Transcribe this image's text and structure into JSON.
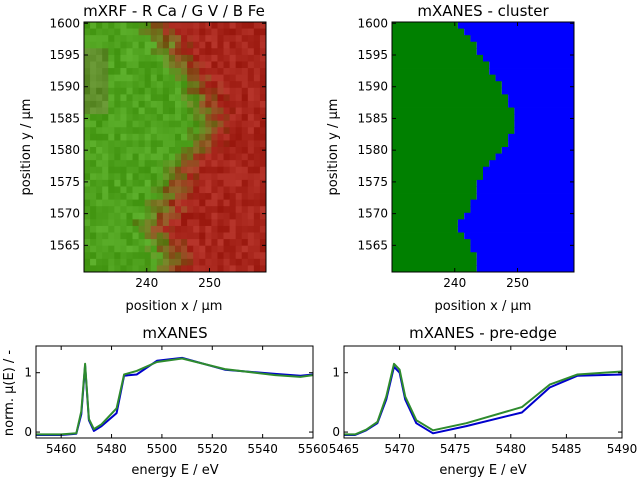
{
  "chart_data": [
    {
      "type": "heatmap",
      "title": "mXRF - R Ca / G V / B Fe",
      "xlabel": "position x / µm",
      "ylabel": "position y / µm",
      "xlim": [
        230,
        259
      ],
      "ylim": [
        1560.8,
        1600.2
      ],
      "xticks": [
        240,
        250
      ],
      "yticks": [
        1565,
        1570,
        1575,
        1580,
        1585,
        1590,
        1595,
        1600
      ],
      "nx": 30,
      "ny": 38,
      "colors": {
        "ca_red": "#a8261c",
        "v_green": "#4fa21e",
        "fe_blue": "#3c3c3c"
      }
    },
    {
      "type": "heatmap",
      "title": "mXANES - cluster",
      "xlabel": "position x / µm",
      "ylabel": "position y / µm",
      "xlim": [
        230,
        259
      ],
      "ylim": [
        1560.8,
        1600.2
      ],
      "xticks": [
        240,
        250
      ],
      "yticks": [
        1565,
        1570,
        1575,
        1580,
        1585,
        1590,
        1595,
        1600
      ],
      "nx": 30,
      "ny": 38,
      "clusters": [
        {
          "id": 0,
          "color": "#008000"
        },
        {
          "id": 1,
          "color": "#0000ff"
        }
      ],
      "boundary_x_by_y": [
        {
          "y": 1600,
          "x": 240.5
        },
        {
          "y": 1599,
          "x": 241.5
        },
        {
          "y": 1598,
          "x": 242.5
        },
        {
          "y": 1597,
          "x": 243.5
        },
        {
          "y": 1596,
          "x": 243.5
        },
        {
          "y": 1595,
          "x": 244.5
        },
        {
          "y": 1594,
          "x": 245.5
        },
        {
          "y": 1593,
          "x": 245.5
        },
        {
          "y": 1592,
          "x": 246.5
        },
        {
          "y": 1591,
          "x": 247.5
        },
        {
          "y": 1590,
          "x": 247.5
        },
        {
          "y": 1589,
          "x": 248.5
        },
        {
          "y": 1588,
          "x": 248.5
        },
        {
          "y": 1587,
          "x": 249.5
        },
        {
          "y": 1586,
          "x": 249.5
        },
        {
          "y": 1585,
          "x": 249.5
        },
        {
          "y": 1584,
          "x": 249.5
        },
        {
          "y": 1583,
          "x": 248.5
        },
        {
          "y": 1582,
          "x": 248.5
        },
        {
          "y": 1581,
          "x": 247.5
        },
        {
          "y": 1580,
          "x": 246.5
        },
        {
          "y": 1579,
          "x": 245.5
        },
        {
          "y": 1578,
          "x": 244.5
        },
        {
          "y": 1577,
          "x": 244.5
        },
        {
          "y": 1576,
          "x": 243.5
        },
        {
          "y": 1575,
          "x": 243.5
        },
        {
          "y": 1574,
          "x": 243.5
        },
        {
          "y": 1573,
          "x": 242.5
        },
        {
          "y": 1572,
          "x": 242.5
        },
        {
          "y": 1571,
          "x": 241.5
        },
        {
          "y": 1570,
          "x": 240.5
        },
        {
          "y": 1569,
          "x": 240.5
        },
        {
          "y": 1568,
          "x": 241.5
        },
        {
          "y": 1567,
          "x": 242.5
        },
        {
          "y": 1566,
          "x": 242.5
        },
        {
          "y": 1565,
          "x": 243.5
        },
        {
          "y": 1564,
          "x": 243.5
        },
        {
          "y": 1563,
          "x": 243.5
        }
      ]
    },
    {
      "type": "line",
      "title": "mXANES",
      "xlabel": "energy E / eV",
      "ylabel": "norm. µ(E) / -",
      "xlim": [
        5450,
        5560
      ],
      "ylim": [
        -0.1,
        1.45
      ],
      "xticks": [
        5460,
        5480,
        5500,
        5520,
        5540,
        5560
      ],
      "yticks": [
        0,
        1
      ],
      "series": [
        {
          "color": "#0000cc",
          "x": [
            5450,
            5460,
            5466,
            5468,
            5469.5,
            5471,
            5473,
            5476,
            5482,
            5485,
            5490,
            5498,
            5508,
            5525,
            5545,
            5555,
            5560
          ],
          "y": [
            -0.05,
            -0.05,
            -0.03,
            0.3,
            1.12,
            0.2,
            0.02,
            0.1,
            0.32,
            0.95,
            0.97,
            1.2,
            1.25,
            1.05,
            0.98,
            0.95,
            0.97
          ]
        },
        {
          "color": "#2e8b2e",
          "x": [
            5450,
            5460,
            5466,
            5468,
            5469.5,
            5471,
            5473,
            5476,
            5482,
            5485,
            5490,
            5498,
            5508,
            5525,
            5545,
            5555,
            5560
          ],
          "y": [
            -0.04,
            -0.04,
            -0.02,
            0.35,
            1.15,
            0.22,
            0.05,
            0.13,
            0.4,
            0.97,
            1.03,
            1.18,
            1.24,
            1.06,
            0.96,
            0.93,
            0.96
          ]
        }
      ]
    },
    {
      "type": "line",
      "title": "mXANES - pre-edge",
      "xlabel": "energy E / eV",
      "ylabel": "",
      "xlim": [
        5465,
        5490
      ],
      "ylim": [
        -0.1,
        1.45
      ],
      "xticks": [
        5465,
        5470,
        5475,
        5480,
        5485,
        5490
      ],
      "yticks": [
        0,
        1
      ],
      "series": [
        {
          "color": "#0000cc",
          "x": [
            5465,
            5466,
            5467,
            5468,
            5468.8,
            5469.5,
            5470,
            5470.5,
            5471.5,
            5473,
            5476,
            5481,
            5483.5,
            5486,
            5490
          ],
          "y": [
            -0.05,
            -0.05,
            0.03,
            0.15,
            0.55,
            1.1,
            1.0,
            0.55,
            0.15,
            -0.02,
            0.1,
            0.33,
            0.75,
            0.95,
            0.97
          ]
        },
        {
          "color": "#2e8b2e",
          "x": [
            5465,
            5466,
            5467,
            5468,
            5468.8,
            5469.5,
            5470,
            5470.5,
            5471.5,
            5473,
            5476,
            5481,
            5483.5,
            5486,
            5490
          ],
          "y": [
            -0.04,
            -0.04,
            0.04,
            0.17,
            0.6,
            1.15,
            1.05,
            0.6,
            0.2,
            0.03,
            0.15,
            0.42,
            0.8,
            0.97,
            1.02
          ]
        }
      ]
    }
  ]
}
